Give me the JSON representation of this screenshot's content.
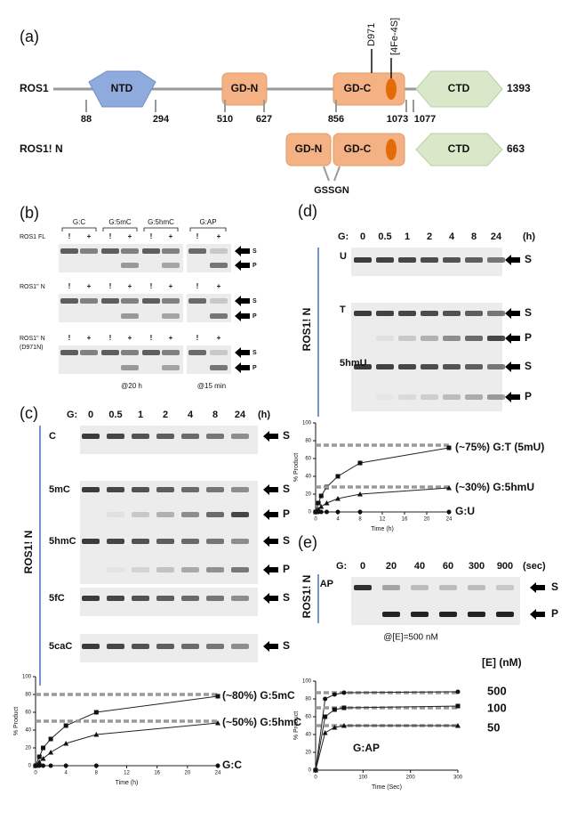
{
  "panel_a": {
    "label": "(a)",
    "full": {
      "name": "ROS1",
      "domains": [
        "NTD",
        "GD-N",
        "GD-C",
        "CTD"
      ],
      "end": "1393",
      "residues": [
        "88",
        "294",
        "510",
        "627",
        "856",
        "1073",
        "1077"
      ],
      "site": "D971",
      "cluster": "[4Fe-4S]"
    },
    "truncated": {
      "name": "ROS1! N",
      "domains": [
        "GD-N",
        "GD-C",
        "CTD"
      ],
      "end": "663",
      "linker": "GSSGN"
    }
  },
  "panel_b": {
    "label": "(b)",
    "groups": [
      "G:C",
      "G:5mC",
      "G:5hmC",
      "G:AP"
    ],
    "rows": [
      {
        "name": "ROS1 FL"
      },
      {
        "name": "ROS1'' N"
      },
      {
        "name": "ROS1'' N",
        "note": "(D971N)"
      }
    ],
    "signs": [
      "!",
      "+"
    ],
    "bands": [
      "S",
      "P"
    ],
    "conditions": [
      "@20 h",
      "@15 min"
    ]
  },
  "panel_c": {
    "label": "(c)",
    "lane_prefix": "G:",
    "lanes": [
      "0",
      "0.5",
      "1",
      "2",
      "4",
      "8",
      "24"
    ],
    "unit": "(h)",
    "construct": "ROS1! N",
    "substrates": [
      "C",
      "5mC",
      "5hmC",
      "5fC",
      "5caC"
    ],
    "bands": [
      "S",
      "P"
    ]
  },
  "panel_d": {
    "label": "(d)",
    "lane_prefix": "G:",
    "lanes": [
      "0",
      "0.5",
      "1",
      "2",
      "4",
      "8",
      "24"
    ],
    "unit": "(h)",
    "construct": "ROS1! N",
    "substrates": [
      "U",
      "T",
      "5hmU"
    ],
    "bands": [
      "S",
      "P"
    ]
  },
  "panel_e": {
    "label": "(e)",
    "lane_prefix": "G:",
    "lanes": [
      "0",
      "20",
      "40",
      "60",
      "300",
      "900"
    ],
    "unit": "(sec)",
    "construct": "ROS1! N",
    "substrate": "AP",
    "bands": [
      "S",
      "P"
    ],
    "condition": "@[E]=500 nM"
  },
  "chart_data": [
    {
      "type": "line",
      "y_label": "% Product",
      "x_label": "Time (h)",
      "x": [
        0,
        0.5,
        1,
        2,
        4,
        8,
        24
      ],
      "xlim": [
        0,
        24
      ],
      "ylim": [
        0,
        100
      ],
      "xticks": [
        0,
        4,
        8,
        12,
        16,
        20,
        24
      ],
      "yticks": [
        0,
        20,
        40,
        60,
        80,
        100
      ],
      "series": [
        {
          "name": "(~80%) G:5mC",
          "color": "#222222",
          "marker": "square",
          "plateau": 80,
          "values": [
            0,
            10,
            20,
            30,
            45,
            60,
            78
          ]
        },
        {
          "name": "(~50%) G:5hmC",
          "color": "#222222",
          "marker": "triangle",
          "plateau": 50,
          "values": [
            0,
            4,
            8,
            15,
            25,
            35,
            48
          ]
        },
        {
          "name": "G:C",
          "color": "#222222",
          "marker": "circle",
          "values": [
            0,
            0,
            0,
            0,
            0,
            0,
            0
          ]
        }
      ]
    },
    {
      "type": "line",
      "y_label": "% Product",
      "x_label": "Time (h)",
      "x": [
        0,
        0.5,
        1,
        2,
        4,
        8,
        24
      ],
      "xlim": [
        0,
        24
      ],
      "ylim": [
        0,
        100
      ],
      "xticks": [
        0,
        4,
        8,
        12,
        16,
        20,
        24
      ],
      "yticks": [
        0,
        20,
        40,
        60,
        80,
        100
      ],
      "series": [
        {
          "name": "(~75%) G:T (5mU)",
          "color": "#222222",
          "marker": "square",
          "plateau": 75,
          "values": [
            0,
            10,
            18,
            28,
            40,
            55,
            72
          ]
        },
        {
          "name": "(~30%) G:5hmU",
          "color": "#222222",
          "marker": "triangle",
          "plateau": 28,
          "values": [
            0,
            3,
            6,
            10,
            15,
            20,
            27
          ]
        },
        {
          "name": "G:U",
          "color": "#222222",
          "marker": "circle",
          "values": [
            0,
            0,
            0,
            0,
            0,
            0,
            0
          ]
        }
      ]
    },
    {
      "type": "line",
      "y_label": "% Product",
      "x_label": "Time (Sec)",
      "legend_title": "[E] (nM)",
      "annotation": "G:AP",
      "x": [
        0,
        20,
        40,
        60,
        300
      ],
      "xlim": [
        0,
        300
      ],
      "ylim": [
        0,
        100
      ],
      "xticks": [
        0,
        100,
        200,
        300
      ],
      "yticks": [
        0,
        20,
        40,
        60,
        80,
        100
      ],
      "series": [
        {
          "name": "500",
          "color": "#222222",
          "marker": "circle",
          "plateau": 87,
          "values": [
            0,
            80,
            85,
            87,
            88
          ]
        },
        {
          "name": "100",
          "color": "#222222",
          "marker": "square",
          "plateau": 70,
          "values": [
            0,
            60,
            68,
            70,
            72
          ]
        },
        {
          "name": "50",
          "color": "#222222",
          "marker": "triangle",
          "plateau": 50,
          "values": [
            0,
            42,
            48,
            50,
            50
          ]
        }
      ]
    }
  ]
}
